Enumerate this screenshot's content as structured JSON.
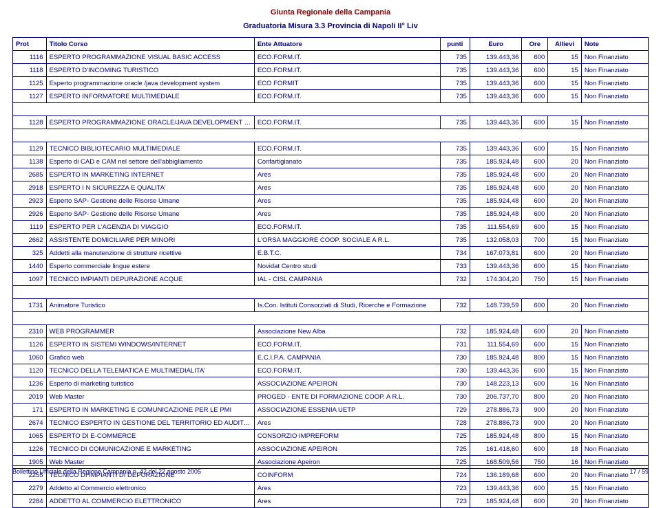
{
  "doc_title": "Giunta Regionale della Campania",
  "sub_title": "Graduatoria Misura 3.3 Provincia di Napoli II° Liv",
  "columns": [
    "Prot",
    "Titolo Corso",
    "Ente Attuatore",
    "punti",
    "Euro",
    "Ore",
    "Allievi",
    "Note"
  ],
  "groups": [
    {
      "rows": [
        {
          "prot": "1116",
          "titolo": "ESPERTO PROGRAMMAZIONE VISUAL BASIC ACCESS",
          "ente": "ECO.FORM.IT.",
          "punti": "735",
          "euro": "139.443,36",
          "ore": "600",
          "allievi": "15",
          "note": "Non Finanziato"
        },
        {
          "prot": "1118",
          "titolo": "ESPERTO D'INCOMING TURISTICO",
          "ente": "ECO.FORM.IT.",
          "punti": "735",
          "euro": "139.443,36",
          "ore": "600",
          "allievi": "15",
          "note": "Non Finanziato"
        },
        {
          "prot": "1125",
          "titolo": "Esperto programmazione oracle /java development system",
          "ente": "ECO FORMIT",
          "punti": "735",
          "euro": "139.443,36",
          "ore": "600",
          "allievi": "15",
          "note": "Non Finanziato"
        },
        {
          "prot": "1127",
          "titolo": "ESPERTO INFORMATORE MULTIMEDIALE",
          "ente": "ECO.FORM.IT.",
          "punti": "735",
          "euro": "139.443,36",
          "ore": "600",
          "allievi": "15",
          "note": "Non Finanziato"
        }
      ]
    },
    {
      "rows": [
        {
          "prot": "1128",
          "titolo": "ESPERTO PROGRAMMAZIONE ORACLE/JAVA DEVELOPMENT SYSTEM",
          "ente": "ECO.FORM.IT.",
          "punti": "735",
          "euro": "139.443,36",
          "ore": "600",
          "allievi": "15",
          "note": "Non Finanziato"
        }
      ]
    },
    {
      "rows": [
        {
          "prot": "1129",
          "titolo": "TECNICO BIBLIOTECARIO MULTIMEDIALE",
          "ente": "ECO.FORM.IT.",
          "punti": "735",
          "euro": "139.443,36",
          "ore": "600",
          "allievi": "15",
          "note": "Non Finanziato"
        },
        {
          "prot": "1138",
          "titolo": "Esperto di CAD e CAM nel settore dell'abbigliamento",
          "ente": "Confartigianato",
          "punti": "735",
          "euro": "185.924,48",
          "ore": "600",
          "allievi": "20",
          "note": "Non Finanziato"
        },
        {
          "prot": "2685",
          "titolo": "ESPERTO IN MARKETING INTERNET",
          "ente": "Ares",
          "punti": "735",
          "euro": "185.924,48",
          "ore": "600",
          "allievi": "20",
          "note": "Non Finanziato"
        },
        {
          "prot": "2918",
          "titolo": "ESPERTO I N SICUREZZA E QUALITA'",
          "ente": "Ares",
          "punti": "735",
          "euro": "185.924,48",
          "ore": "600",
          "allievi": "20",
          "note": "Non Finanziato"
        },
        {
          "prot": "2923",
          "titolo": "Esperto SAP- Gestione delle Risorse Umane",
          "ente": "Ares",
          "punti": "735",
          "euro": "185.924,48",
          "ore": "600",
          "allievi": "20",
          "note": "Non Finanziato"
        },
        {
          "prot": "2926",
          "titolo": "Esperto SAP- Gestione delle Risorse Umane",
          "ente": "Ares",
          "punti": "735",
          "euro": "185.924,48",
          "ore": "600",
          "allievi": "20",
          "note": "Non Finanziato"
        },
        {
          "prot": "1119",
          "titolo": "ESPERTO PER L'AGENZIA DI VIAGGIO",
          "ente": "ECO.FORM.IT.",
          "punti": "735",
          "euro": "111.554,69",
          "ore": "600",
          "allievi": "15",
          "note": "Non Finanziato"
        },
        {
          "prot": "2662",
          "titolo": "ASSISTENTE DOMICILIARE PER MINORI",
          "ente": "L'ORSA MAGGIORE COOP. SOCIALE A R.L.",
          "punti": "735",
          "euro": "132.058,03",
          "ore": "700",
          "allievi": "15",
          "note": "Non Finanziato"
        },
        {
          "prot": "325",
          "titolo": "Addetti alla manutenzione di strutture ricettive",
          "ente": "E.B.T.C.",
          "punti": "734",
          "euro": "167.073,81",
          "ore": "600",
          "allievi": "20",
          "note": "Non Finanziato"
        },
        {
          "prot": "1440",
          "titolo": "Esperto commerciale lingue estere",
          "ente": "Novidat Centro studi",
          "punti": "733",
          "euro": "139.443,36",
          "ore": "600",
          "allievi": "15",
          "note": "Non Finanziato"
        },
        {
          "prot": "1097",
          "titolo": "TECNICO  IMPIANTI  DEPURAZIONE  ACQUE",
          "ente": "IAL - CISL CAMPANIA",
          "punti": "732",
          "euro": "174.304,20",
          "ore": "750",
          "allievi": "15",
          "note": "Non Finanziato"
        }
      ]
    },
    {
      "rows": [
        {
          "prot": "1731",
          "titolo": "Animatore Turistico",
          "ente": "Is.Con. Istituti Consorziati di Studi, Ricerche e Formazione",
          "punti": "732",
          "euro": "148.739,59",
          "ore": "600",
          "allievi": "20",
          "note": "Non Finanziato"
        }
      ]
    },
    {
      "rows": [
        {
          "prot": "2310",
          "titolo": "WEB PROGRAMMER",
          "ente": "Associazione New Alba",
          "punti": "732",
          "euro": "185.924,48",
          "ore": "600",
          "allievi": "20",
          "note": "Non Finanziato"
        },
        {
          "prot": "1126",
          "titolo": "ESPERTO IN SISTEMI WINDOWS/INTERNET",
          "ente": "ECO.FORM.IT.",
          "punti": "731",
          "euro": "111.554,69",
          "ore": "600",
          "allievi": "15",
          "note": "Non Finanziato"
        },
        {
          "prot": "1060",
          "titolo": "Grafico web",
          "ente": "E.C.I.P.A. CAMPANIA",
          "punti": "730",
          "euro": "185.924,48",
          "ore": "800",
          "allievi": "15",
          "note": "Non Finanziato"
        },
        {
          "prot": "1120",
          "titolo": "TECNICO DELLA TELEMATICA E MULTIMEDIALITA'",
          "ente": "ECO.FORM.IT.",
          "punti": "730",
          "euro": "139.443,36",
          "ore": "600",
          "allievi": "15",
          "note": "Non Finanziato"
        },
        {
          "prot": "1236",
          "titolo": "Esperto di marketing turistico",
          "ente": "ASSOCIAZIONE APEIRON",
          "punti": "730",
          "euro": "148.223,13",
          "ore": "600",
          "allievi": "16",
          "note": "Non Finanziato"
        },
        {
          "prot": "2019",
          "titolo": "Web Master",
          "ente": "PROGED - ENTE DI FORMAZIONE COOP. A R.L.",
          "punti": "730",
          "euro": "206.737,70",
          "ore": "800",
          "allievi": "20",
          "note": "Non Finanziato"
        },
        {
          "prot": "171",
          "titolo": "ESPERTO IN MARKETING E COMUNICAZIONE PER LE PMI",
          "ente": "ASSOCIAZIONE ESSENIA UETP",
          "punti": "729",
          "euro": "278.886,73",
          "ore": "900",
          "allievi": "20",
          "note": "Non Finanziato"
        },
        {
          "prot": "2674",
          "titolo": "TECNICO ESPERTO IN GESTIONE DEL TERRITORIO ED AUDIT AMBIENTALE",
          "ente": "Ares",
          "punti": "728",
          "euro": "278.886,73",
          "ore": "900",
          "allievi": "20",
          "note": "Non Finanziato"
        },
        {
          "prot": "1065",
          "titolo": "ESPERTO DI E-COMMERCE",
          "ente": "CONSORZIO IMPREFORM",
          "punti": "725",
          "euro": "185.924,48",
          "ore": "800",
          "allievi": "15",
          "note": "Non Finanziato"
        },
        {
          "prot": "1226",
          "titolo": "TECNICO DI COMUNICAZIONE E MARKETING",
          "ente": "ASSOCIAZIONE APEIRON",
          "punti": "725",
          "euro": "161.418,60",
          "ore": "600",
          "allievi": "18",
          "note": "Non Finanziato"
        },
        {
          "prot": "1905",
          "titolo": "Web Master",
          "ente": "Associazione Apeiron",
          "punti": "725",
          "euro": "168.509,56",
          "ore": "750",
          "allievi": "16",
          "note": "Non Finanziato"
        },
        {
          "prot": "2255",
          "titolo": "TECNICO DI IMPIANTI DI DEPURAZIONE",
          "ente": "COINFORM",
          "punti": "724",
          "euro": "136.189,68",
          "ore": "600",
          "allievi": "20",
          "note": "Non Finanziato"
        },
        {
          "prot": "2279",
          "titolo": "Addetto al Commercio elettronico",
          "ente": "Ares",
          "punti": "723",
          "euro": "139.443,36",
          "ore": "600",
          "allievi": "15",
          "note": "Non Finanziato"
        },
        {
          "prot": "2284",
          "titolo": "ADDETTO AL COMMERCIO ELETTRONICO",
          "ente": "Ares",
          "punti": "723",
          "euro": "185.924,48",
          "ore": "600",
          "allievi": "20",
          "note": "Non Finanziato"
        }
      ]
    }
  ],
  "footer_left": "Bollettino Ufficiale della Regione Campania n. 42 del 22 agosto 2005",
  "footer_right": "17 / 59"
}
